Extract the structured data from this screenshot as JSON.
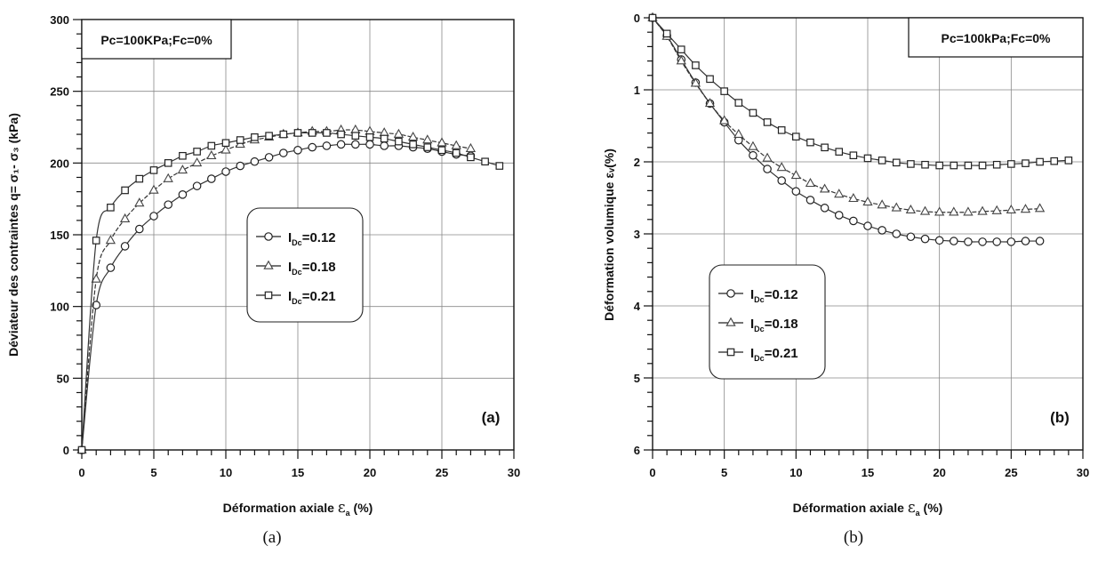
{
  "chart_data": [
    {
      "type": "line",
      "panel_tag": "(a)",
      "caption": "(a)",
      "ylabel": "Déviateur des contraintes q= σ₁- σ₃ (kPa)",
      "xlabel": "Déformation axiale  εₐ (%)",
      "xlabel_main": "Déformation axiale",
      "xlabel_symbol": "ε",
      "xlabel_sub": "a",
      "xlabel_unit": "(%)",
      "xlim": [
        0,
        30
      ],
      "ylim": [
        0,
        300
      ],
      "y_inverted": false,
      "xticks": [
        "0",
        "5",
        "10",
        "15",
        "20",
        "25",
        "30"
      ],
      "yticks": [
        "0",
        "50",
        "100",
        "150",
        "200",
        "250",
        "300"
      ],
      "grid": true,
      "annotation": "Pc=100KPa;Fc=0%",
      "legend_position": "center",
      "series": [
        {
          "name": "I_Dc=0.12",
          "label_main": "I",
          "label_sub": "Dc",
          "label_value": "=0.12",
          "marker": "circle",
          "x": [
            0,
            1,
            2,
            3,
            4,
            5,
            6,
            7,
            8,
            9,
            10,
            11,
            12,
            13,
            14,
            15,
            16,
            17,
            18,
            19,
            20,
            21,
            22,
            23,
            24,
            25,
            26,
            27
          ],
          "y": [
            0,
            101,
            127,
            142,
            154,
            163,
            171,
            178,
            184,
            189,
            194,
            198,
            201,
            204,
            207,
            209,
            211,
            212,
            213,
            213,
            213,
            212,
            212,
            211,
            210,
            208,
            206,
            205
          ]
        },
        {
          "name": "I_Dc=0.18",
          "label_main": "I",
          "label_sub": "Dc",
          "label_value": "=0.18",
          "marker": "triangle",
          "x": [
            0,
            1,
            2,
            3,
            4,
            5,
            6,
            7,
            8,
            9,
            10,
            11,
            12,
            13,
            14,
            15,
            16,
            17,
            18,
            19,
            20,
            21,
            22,
            23,
            24,
            25,
            26,
            27
          ],
          "y": [
            0,
            119,
            146,
            161,
            172,
            181,
            189,
            195,
            200,
            205,
            209,
            213,
            216,
            218,
            220,
            221,
            222,
            222,
            223,
            223,
            222,
            221,
            220,
            218,
            216,
            214,
            212,
            210
          ]
        },
        {
          "name": "I_Dc=0.21",
          "label_main": "I",
          "label_sub": "Dc",
          "label_value": "=0.21",
          "marker": "square",
          "x": [
            0,
            1,
            2,
            3,
            4,
            5,
            6,
            7,
            8,
            9,
            10,
            11,
            12,
            13,
            14,
            15,
            16,
            17,
            18,
            19,
            20,
            21,
            22,
            23,
            24,
            25,
            26,
            27,
            28,
            29
          ],
          "y": [
            0,
            146,
            169,
            181,
            189,
            195,
            200,
            205,
            208,
            212,
            214,
            216,
            218,
            219,
            220,
            221,
            221,
            221,
            220,
            219,
            218,
            217,
            215,
            213,
            211,
            209,
            207,
            204,
            201,
            198
          ]
        }
      ]
    },
    {
      "type": "line",
      "panel_tag": "(b)",
      "caption": "(b)",
      "ylabel": "Déformation volumique εᵥ(%)",
      "xlabel": "Déformation axiale  εₐ (%)",
      "xlabel_main": "Déformation axiale",
      "xlabel_symbol": "ε",
      "xlabel_sub": "a",
      "xlabel_unit": "(%)",
      "xlim": [
        0,
        30
      ],
      "ylim": [
        0,
        6
      ],
      "y_inverted": true,
      "xticks": [
        "0",
        "5",
        "10",
        "15",
        "20",
        "25",
        "30"
      ],
      "yticks": [
        "0",
        "1",
        "2",
        "3",
        "4",
        "5",
        "6"
      ],
      "grid": true,
      "annotation": "Pc=100kPa;Fc=0%",
      "legend_position": "center-left",
      "series": [
        {
          "name": "I_Dc=0.12",
          "label_main": "I",
          "label_sub": "Dc",
          "label_value": "=0.12",
          "marker": "circle",
          "x": [
            0,
            1,
            2,
            3,
            4,
            5,
            6,
            7,
            8,
            9,
            10,
            11,
            12,
            13,
            14,
            15,
            16,
            17,
            18,
            19,
            20,
            21,
            22,
            23,
            24,
            25,
            26,
            27
          ],
          "y": [
            0,
            0.25,
            0.58,
            0.9,
            1.19,
            1.45,
            1.7,
            1.91,
            2.1,
            2.26,
            2.41,
            2.53,
            2.64,
            2.74,
            2.82,
            2.89,
            2.95,
            3.0,
            3.04,
            3.07,
            3.09,
            3.1,
            3.11,
            3.11,
            3.11,
            3.11,
            3.1,
            3.1
          ]
        },
        {
          "name": "I_Dc=0.18",
          "label_main": "I",
          "label_sub": "Dc",
          "label_value": "=0.18",
          "marker": "triangle",
          "x": [
            0,
            1,
            2,
            3,
            4,
            5,
            6,
            7,
            8,
            9,
            10,
            11,
            12,
            13,
            14,
            15,
            16,
            17,
            18,
            19,
            20,
            21,
            22,
            23,
            24,
            25,
            26,
            27
          ],
          "y": [
            0,
            0.26,
            0.6,
            0.91,
            1.19,
            1.43,
            1.62,
            1.79,
            1.95,
            2.08,
            2.19,
            2.3,
            2.38,
            2.45,
            2.51,
            2.56,
            2.6,
            2.64,
            2.67,
            2.69,
            2.7,
            2.7,
            2.7,
            2.69,
            2.68,
            2.67,
            2.66,
            2.65
          ]
        },
        {
          "name": "I_Dc=0.21",
          "label_main": "I",
          "label_sub": "Dc",
          "label_value": "=0.21",
          "marker": "square",
          "x": [
            0,
            1,
            2,
            3,
            4,
            5,
            6,
            7,
            8,
            9,
            10,
            11,
            12,
            13,
            14,
            15,
            16,
            17,
            18,
            19,
            20,
            21,
            22,
            23,
            24,
            25,
            26,
            27,
            28,
            29
          ],
          "y": [
            0,
            0.22,
            0.44,
            0.66,
            0.85,
            1.02,
            1.18,
            1.32,
            1.45,
            1.56,
            1.65,
            1.73,
            1.8,
            1.86,
            1.91,
            1.95,
            1.98,
            2.01,
            2.03,
            2.04,
            2.05,
            2.05,
            2.05,
            2.05,
            2.04,
            2.03,
            2.02,
            2.0,
            1.99,
            1.98
          ]
        }
      ]
    }
  ]
}
